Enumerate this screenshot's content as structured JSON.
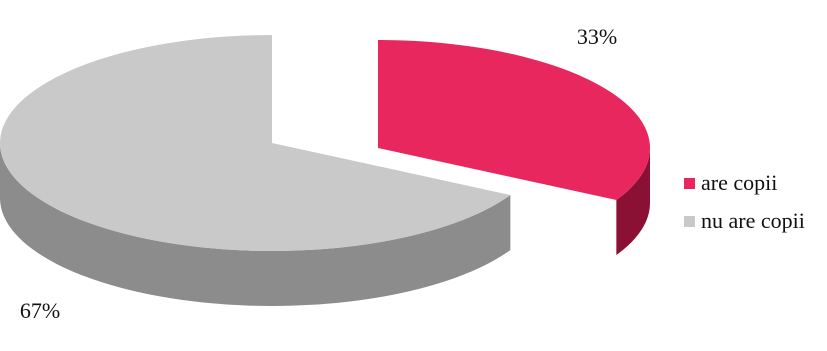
{
  "chart_data": {
    "type": "pie",
    "style": "3d-exploded",
    "title": "",
    "series": [
      {
        "label": "are copii",
        "value": 33,
        "display": "33%",
        "color": "#E8275F",
        "side_color": "#8A1133"
      },
      {
        "label": "nu are copii",
        "value": 67,
        "display": "67%",
        "color": "#C9C9C9",
        "side_color": "#8C8C8C"
      }
    ],
    "legend_position": "right"
  }
}
